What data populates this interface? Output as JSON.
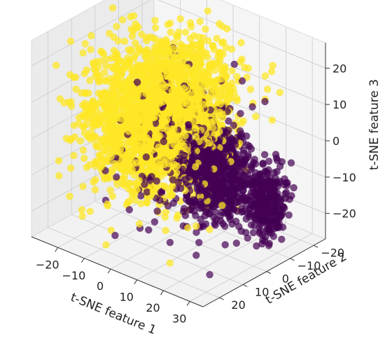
{
  "chart_data": {
    "type": "scatter",
    "projection": "3d",
    "title": "",
    "xlabel": "t-SNE feature 1",
    "ylabel": "t-SNE feature 2",
    "zlabel": "t-SNE feature 3",
    "xticks": [
      -20,
      -10,
      0,
      10,
      20,
      30
    ],
    "yticks": [
      -20,
      -10,
      0,
      10,
      20
    ],
    "zticks": [
      -20,
      -10,
      0,
      10,
      20
    ],
    "xlim": [
      -30,
      35
    ],
    "ylim": [
      -25,
      27
    ],
    "zlim": [
      -27,
      27
    ],
    "grid": true,
    "legend": "none",
    "series": [
      {
        "color": "#440154",
        "alpha": 0.7,
        "approx_count": 1200,
        "clusters": [
          {
            "center": [
              18,
              2,
              -5
            ],
            "spread": [
              5,
              5,
              6
            ],
            "weight": 0.55
          },
          {
            "center": [
              26,
              -10,
              -14
            ],
            "spread": [
              3,
              3,
              5
            ],
            "weight": 0.25
          },
          {
            "center": [
              8,
              6,
              2
            ],
            "spread": [
              8,
              8,
              9
            ],
            "weight": 0.2
          }
        ]
      },
      {
        "color": "#fde725",
        "alpha": 0.75,
        "approx_count": 2200,
        "clusters": [
          {
            "center": [
              -5,
              5,
              5
            ],
            "spread": [
              10,
              9,
              10
            ],
            "weight": 0.75
          },
          {
            "center": [
              5,
              0,
              12
            ],
            "spread": [
              8,
              8,
              8
            ],
            "weight": 0.25
          }
        ]
      }
    ]
  }
}
